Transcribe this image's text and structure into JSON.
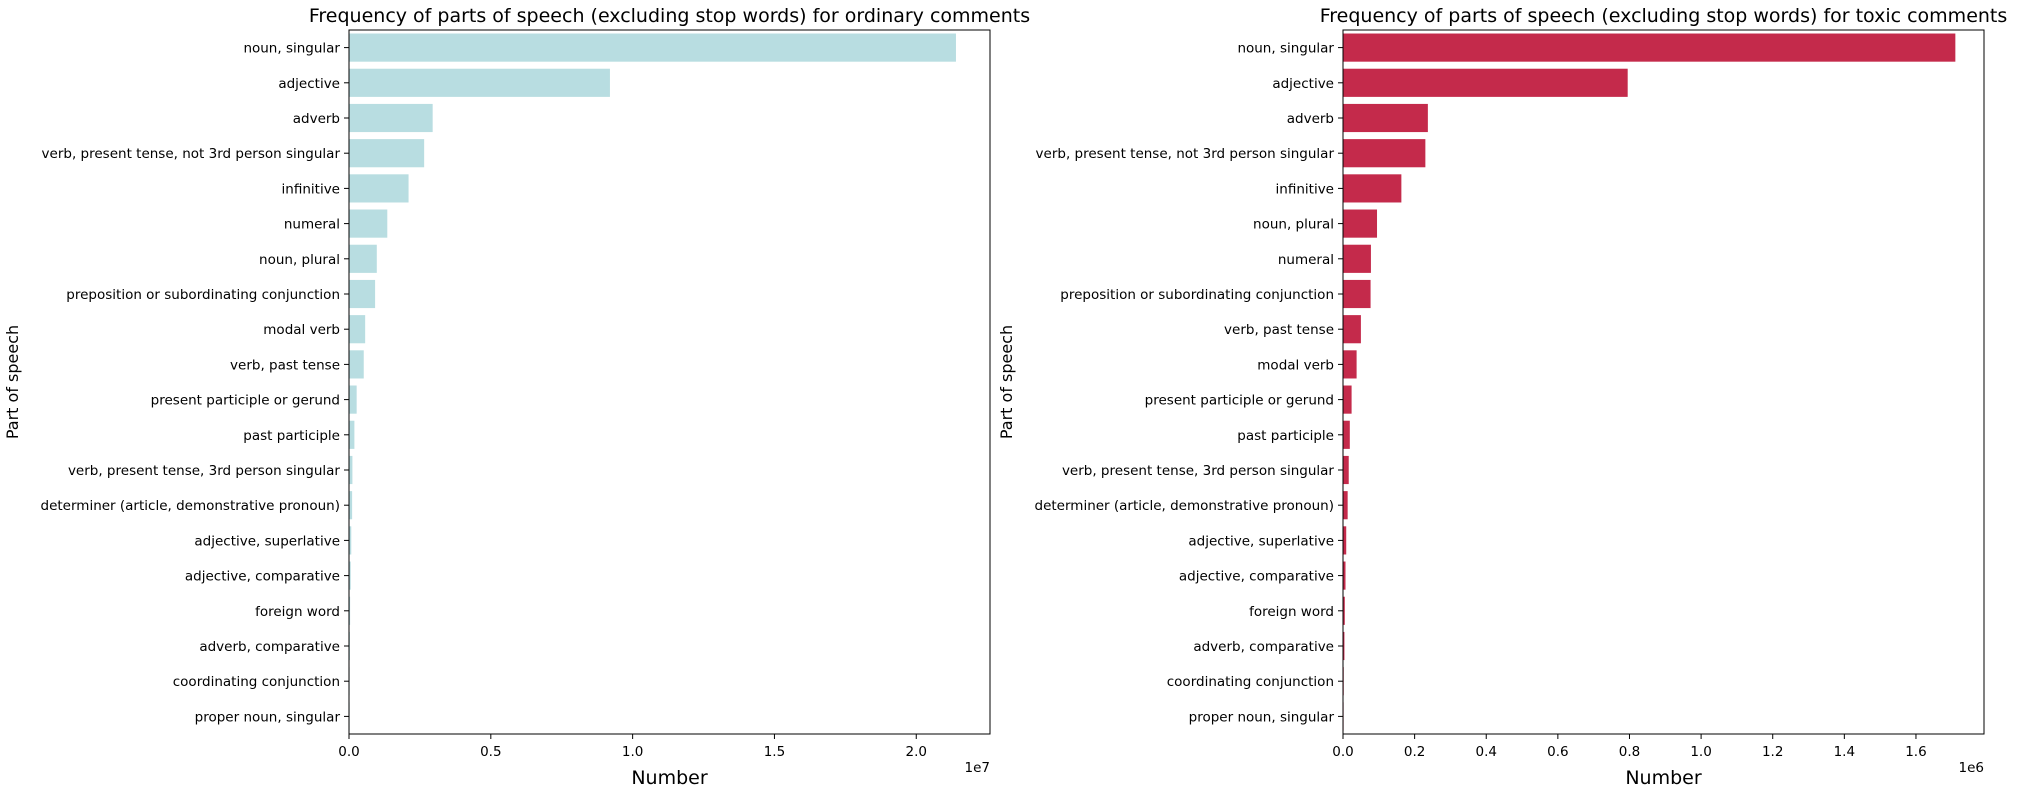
{
  "chart_data": [
    {
      "type": "bar",
      "orientation": "horizontal",
      "title": "Frequency of parts of speech (excluding stop words) for ordinary comments",
      "xlabel": "Number",
      "ylabel": "Part of speech",
      "offset_text": "1e7",
      "scale": 10000000,
      "xlim": [
        0,
        2.26
      ],
      "xticks": [
        0,
        0.5,
        1.0,
        1.5,
        2.0
      ],
      "xtick_labels": [
        "0.0",
        "0.5",
        "1.0",
        "1.5",
        "2.0"
      ],
      "color": "#b8dde1",
      "grid": false,
      "categories": [
        "noun, singular",
        "adjective",
        "adverb",
        "verb, present tense, not 3rd person singular",
        "infinitive",
        "numeral",
        "noun, plural",
        "preposition or subordinating conjunction",
        "modal verb",
        "verb, past tense",
        "present participle or gerund",
        "past participle",
        "verb, present tense, 3rd person singular",
        "determiner (article, demonstrative pronoun)",
        "adjective, superlative",
        "adjective, comparative",
        "foreign word",
        "adverb, comparative",
        "coordinating conjunction",
        "proper noun, singular"
      ],
      "values": [
        2.14,
        0.92,
        0.295,
        0.265,
        0.21,
        0.135,
        0.098,
        0.092,
        0.057,
        0.052,
        0.027,
        0.019,
        0.012,
        0.011,
        0.008,
        0.006,
        0.004,
        0.003,
        0.002,
        0.0015
      ]
    },
    {
      "type": "bar",
      "orientation": "horizontal",
      "title": "Frequency of parts of speech (excluding stop words) for toxic comments",
      "xlabel": "Number",
      "ylabel": "Part of speech",
      "offset_text": "1e6",
      "scale": 1000000,
      "xlim": [
        0,
        1.79
      ],
      "xticks": [
        0,
        0.2,
        0.4,
        0.6,
        0.8,
        1.0,
        1.2,
        1.4,
        1.6
      ],
      "xtick_labels": [
        "0.0",
        "0.2",
        "0.4",
        "0.6",
        "0.8",
        "1.0",
        "1.2",
        "1.4",
        "1.6"
      ],
      "color": "#c42a4b",
      "grid": false,
      "categories": [
        "noun, singular",
        "adjective",
        "adverb",
        "verb, present tense, not 3rd person singular",
        "infinitive",
        "noun, plural",
        "numeral",
        "preposition or subordinating conjunction",
        "verb, past tense",
        "modal verb",
        "present participle or gerund",
        "past participle",
        "verb, present tense, 3rd person singular",
        "determiner (article, demonstrative pronoun)",
        "adjective, superlative",
        "adjective, comparative",
        "foreign word",
        "adverb, comparative",
        "coordinating conjunction",
        "proper noun, singular"
      ],
      "values": [
        1.71,
        0.795,
        0.237,
        0.23,
        0.163,
        0.095,
        0.078,
        0.077,
        0.05,
        0.038,
        0.024,
        0.019,
        0.016,
        0.013,
        0.009,
        0.007,
        0.005,
        0.004,
        0.002,
        0.001
      ]
    }
  ]
}
